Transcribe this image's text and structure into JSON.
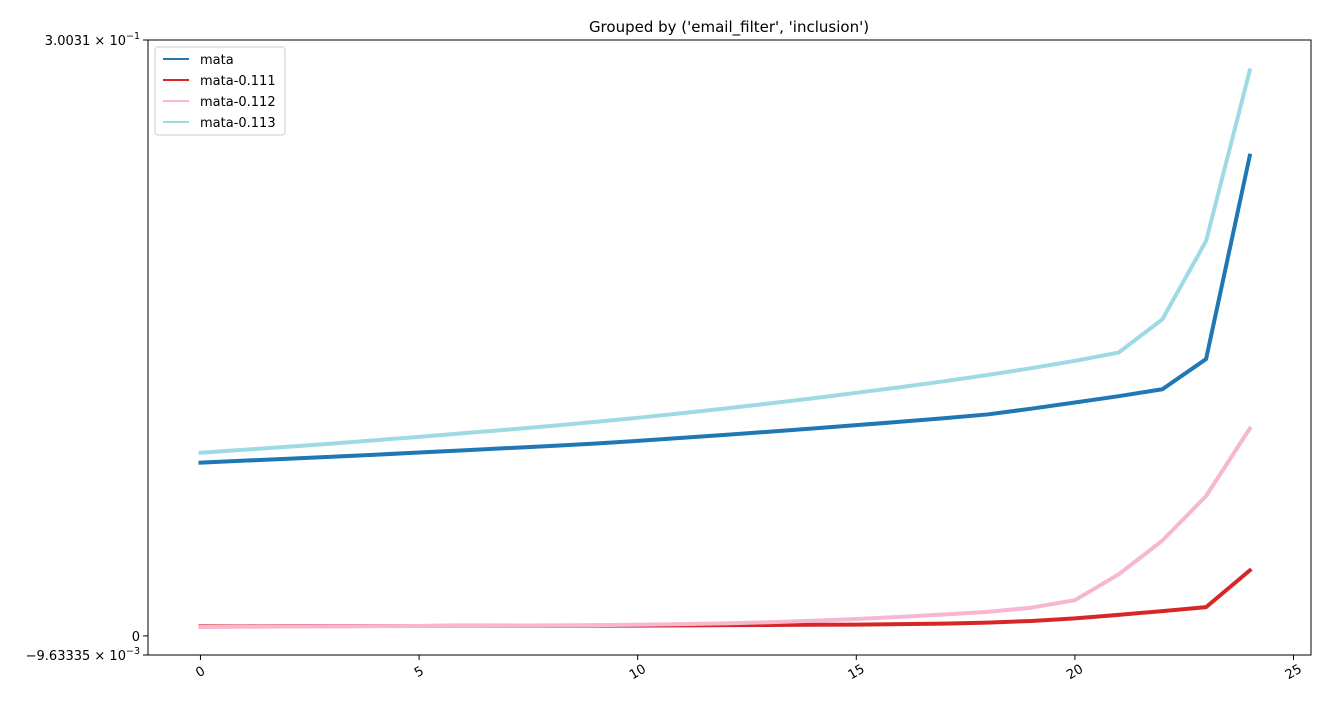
{
  "chart_data": {
    "type": "line",
    "title": "Grouped by ('email_filter', 'inclusion')",
    "xlabel": "",
    "ylabel": "",
    "xlim": [
      -1.2,
      25.4
    ],
    "ylim": [
      -0.00963335,
      0.30031
    ],
    "x_ticks": [
      0,
      5,
      10,
      15,
      20,
      25
    ],
    "y_ticks": [
      {
        "value": -0.00963335,
        "mantissa": "−9.63335",
        "exponent": "−3"
      },
      {
        "value": 0,
        "mantissa": "0",
        "exponent": ""
      },
      {
        "value": 0.30031,
        "mantissa": "3.0031",
        "exponent": "−1"
      }
    ],
    "grid": false,
    "legend_position": "top-left",
    "x": [
      0,
      1,
      2,
      3,
      4,
      5,
      6,
      7,
      8,
      9,
      10,
      11,
      12,
      13,
      14,
      15,
      16,
      17,
      18,
      19,
      20,
      21,
      22,
      23,
      24
    ],
    "series": [
      {
        "name": "mata",
        "color": "#1f77b4",
        "values": [
          0.0873,
          0.0883,
          0.0893,
          0.0903,
          0.0913,
          0.0924,
          0.0935,
          0.0946,
          0.0957,
          0.0969,
          0.0983,
          0.0998,
          0.1013,
          0.1029,
          0.1045,
          0.1062,
          0.1079,
          0.1097,
          0.1116,
          0.1145,
          0.1176,
          0.1208,
          0.1243,
          0.1395,
          0.242
        ]
      },
      {
        "name": "mata-0.111",
        "color": "#d62728",
        "values": [
          0.0048,
          0.0048,
          0.0049,
          0.0049,
          0.005,
          0.005,
          0.0051,
          0.0051,
          0.0051,
          0.0052,
          0.0052,
          0.0053,
          0.0054,
          0.0055,
          0.0056,
          0.0057,
          0.0059,
          0.0062,
          0.0067,
          0.0075,
          0.0088,
          0.0106,
          0.0125,
          0.0145,
          0.033
        ]
      },
      {
        "name": "mata-0.112",
        "color": "#f7b6d2",
        "values": [
          0.0045,
          0.0046,
          0.0047,
          0.0048,
          0.0049,
          0.005,
          0.0051,
          0.0052,
          0.0053,
          0.0054,
          0.0056,
          0.0059,
          0.0063,
          0.0069,
          0.0076,
          0.0085,
          0.0096,
          0.0108,
          0.0121,
          0.0142,
          0.018,
          0.031,
          0.048,
          0.0705,
          0.1045
        ]
      },
      {
        "name": "mata-0.113",
        "color": "#9edae5",
        "values": [
          0.0923,
          0.0938,
          0.0953,
          0.0969,
          0.0986,
          0.1003,
          0.1021,
          0.1039,
          0.1058,
          0.1078,
          0.1099,
          0.1122,
          0.1146,
          0.1171,
          0.1197,
          0.1225,
          0.1253,
          0.1283,
          0.1315,
          0.1349,
          0.1386,
          0.1428,
          0.1595,
          0.199,
          0.285
        ]
      }
    ]
  }
}
